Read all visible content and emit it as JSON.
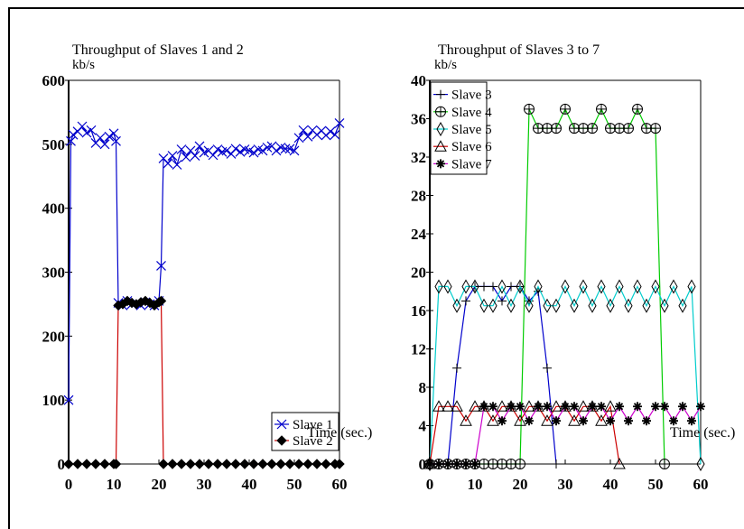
{
  "chart_data": [
    {
      "type": "line",
      "title": "Throughput of Slaves 1 and 2",
      "ylabel": "kb/s",
      "xlabel": "Time (sec.)",
      "xlim": [
        0,
        60
      ],
      "ylim": [
        0,
        600
      ],
      "xticks": [
        "0",
        "10",
        "20",
        "30",
        "40",
        "50",
        "60"
      ],
      "yticks": [
        "0",
        "100",
        "200",
        "300",
        "400",
        "500",
        "600"
      ],
      "legend_position": "bottom-right",
      "series": [
        {
          "name": "Slave 1",
          "color": "#0000cc",
          "marker": "x",
          "x": [
            0,
            0.5,
            1,
            2,
            3,
            4,
            5,
            6,
            7,
            8,
            9,
            10,
            10.5,
            11,
            12,
            13,
            14,
            15,
            16,
            17,
            18,
            19,
            20,
            20.5,
            21,
            22,
            23,
            24,
            25,
            26,
            27,
            28,
            29,
            30,
            31,
            32,
            33,
            34,
            35,
            36,
            37,
            38,
            39,
            40,
            41,
            42,
            43,
            44,
            45,
            46,
            47,
            48,
            49,
            50,
            51,
            52,
            53,
            54,
            55,
            56,
            57,
            58,
            59,
            60
          ],
          "y": [
            100,
            505,
            515,
            520,
            528,
            518,
            522,
            502,
            510,
            500,
            512,
            517,
            505,
            252,
            248,
            255,
            250,
            252,
            248,
            253,
            250,
            248,
            255,
            310,
            478,
            470,
            482,
            468,
            492,
            480,
            490,
            482,
            497,
            487,
            490,
            483,
            492,
            488,
            490,
            485,
            493,
            488,
            492,
            490,
            487,
            492,
            490,
            495,
            497,
            490,
            495,
            493,
            493,
            490,
            510,
            522,
            512,
            522,
            515,
            521,
            514,
            520,
            515,
            533
          ]
        },
        {
          "name": "Slave 2",
          "color": "#cc0000",
          "marker": "diamond",
          "x": [
            0,
            2,
            4,
            6,
            8,
            10,
            10.5,
            11,
            12,
            13,
            14,
            15,
            16,
            17,
            18,
            19,
            20,
            20.5,
            21,
            23,
            25,
            27,
            29,
            31,
            33,
            35,
            37,
            39,
            41,
            43,
            45,
            47,
            49,
            51,
            53,
            55,
            57,
            59,
            60
          ],
          "y": [
            0,
            0,
            0,
            0,
            0,
            0,
            0,
            248,
            250,
            255,
            252,
            250,
            253,
            255,
            252,
            248,
            253,
            255,
            0,
            0,
            0,
            0,
            0,
            0,
            0,
            0,
            0,
            0,
            0,
            0,
            0,
            0,
            0,
            0,
            0,
            0,
            0,
            0,
            0
          ]
        }
      ]
    },
    {
      "type": "line",
      "title": "Throughput of Slaves 3 to 7",
      "ylabel": "kb/s",
      "xlabel": "Time (sec.)",
      "xlim": [
        0,
        60
      ],
      "ylim": [
        0,
        40
      ],
      "xticks": [
        "0",
        "10",
        "20",
        "30",
        "40",
        "50",
        "60"
      ],
      "yticks": [
        "0",
        "4",
        "8",
        "12",
        "16",
        "20",
        "24",
        "28",
        "32",
        "36",
        "40"
      ],
      "legend_position": "top-left",
      "series": [
        {
          "name": "Slave 3",
          "color": "#0000cc",
          "marker": "plus",
          "x": [
            0,
            2,
            4,
            6,
            8,
            10,
            12,
            14,
            16,
            18,
            20,
            22,
            24,
            26,
            28
          ],
          "y": [
            0,
            0,
            0,
            10,
            17,
            18.5,
            18.5,
            18.5,
            17,
            18.5,
            18.5,
            17,
            18,
            10,
            0
          ]
        },
        {
          "name": "Slave 4",
          "color": "#00cc00",
          "marker": "circle-plus",
          "x": [
            0,
            2,
            4,
            6,
            8,
            10,
            12,
            14,
            16,
            18,
            20,
            22,
            24,
            26,
            28,
            30,
            32,
            34,
            36,
            38,
            40,
            42,
            44,
            46,
            48,
            50,
            52
          ],
          "y": [
            0,
            0,
            0,
            0,
            0,
            0,
            0,
            0,
            0,
            0,
            0,
            37,
            35,
            35,
            35,
            37,
            35,
            35,
            35,
            37,
            35,
            35,
            35,
            37,
            35,
            35,
            0
          ]
        },
        {
          "name": "Slave 5",
          "color": "#00cccc",
          "marker": "diamond-open",
          "x": [
            0,
            2,
            4,
            6,
            8,
            10,
            12,
            14,
            16,
            18,
            20,
            22,
            24,
            26,
            28,
            30,
            32,
            34,
            36,
            38,
            40,
            42,
            44,
            46,
            48,
            50,
            52,
            54,
            56,
            58,
            60
          ],
          "y": [
            0,
            18.5,
            18.5,
            16.5,
            18.5,
            18.5,
            16.5,
            16.5,
            18.5,
            16.5,
            18.5,
            16.5,
            18.5,
            16.5,
            16.5,
            18.5,
            16.5,
            18.5,
            16.5,
            18.5,
            16.5,
            18.5,
            16.5,
            18.5,
            16.5,
            18.5,
            16.5,
            18.5,
            16.5,
            18.5,
            0
          ]
        },
        {
          "name": "Slave 6",
          "color": "#cc0000",
          "marker": "triangle-open",
          "x": [
            0,
            2,
            4,
            6,
            8,
            10,
            12,
            14,
            16,
            18,
            20,
            22,
            24,
            26,
            28,
            30,
            32,
            34,
            36,
            38,
            40,
            42
          ],
          "y": [
            0,
            6,
            6,
            6,
            4.5,
            6,
            6,
            4.5,
            6,
            6,
            4.5,
            6,
            6,
            4.5,
            6,
            6,
            4.5,
            6,
            6,
            4.5,
            6,
            0
          ]
        },
        {
          "name": "Slave 7",
          "color": "#cc00cc",
          "marker": "star",
          "x": [
            0,
            2,
            4,
            6,
            8,
            10,
            12,
            14,
            16,
            18,
            20,
            22,
            24,
            26,
            28,
            30,
            32,
            34,
            36,
            38,
            40,
            42,
            44,
            46,
            48,
            50,
            52,
            54,
            56,
            58,
            60
          ],
          "y": [
            0,
            0,
            0,
            0,
            0,
            0,
            6,
            6,
            4.5,
            6,
            6,
            4.5,
            6,
            6,
            4.5,
            6,
            6,
            4.5,
            6,
            6,
            4.5,
            6,
            4.5,
            6,
            4.5,
            6,
            6,
            4.5,
            6,
            4.5,
            6
          ]
        }
      ]
    }
  ]
}
